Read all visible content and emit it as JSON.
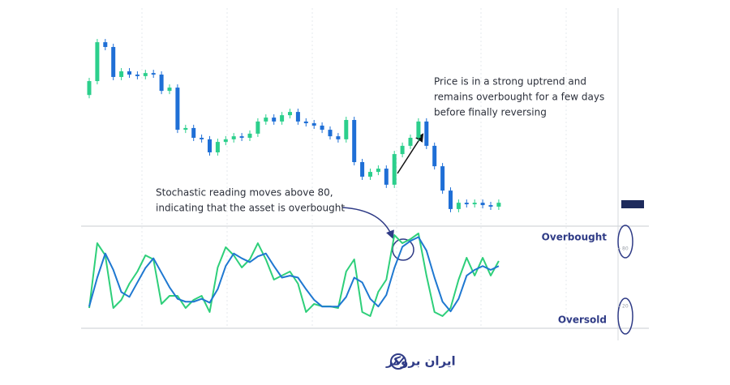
{
  "chart_data": [
    {
      "type": "candlestick",
      "open": [
        60.0,
        66.4,
        84.3,
        82.1,
        68.3,
        70.9,
        69.4,
        68.7,
        70.1,
        69.4,
        61.9,
        63.4,
        44.0,
        44.8,
        40.3,
        39.6,
        33.6,
        38.4,
        39.6,
        41.0,
        40.3,
        42.2,
        47.8,
        49.6,
        47.8,
        50.7,
        52.2,
        47.8,
        47.0,
        45.9,
        44.0,
        41.0,
        39.6,
        48.5,
        29.1,
        22.4,
        24.6,
        26.1,
        18.7,
        32.8,
        36.6,
        40.3,
        47.8,
        36.6,
        27.2,
        16.0,
        7.5,
        10.4,
        9.7,
        10.4,
        9.3,
        8.6
      ],
      "high": [
        67.9,
        85.8,
        85.8,
        83.6,
        72.4,
        72.4,
        70.9,
        71.6,
        71.6,
        70.9,
        64.9,
        64.9,
        46.3,
        46.3,
        41.8,
        41.1,
        39.9,
        41.1,
        42.5,
        42.5,
        43.7,
        49.3,
        51.1,
        51.1,
        52.2,
        53.7,
        53.7,
        49.3,
        48.5,
        47.4,
        45.5,
        42.5,
        50.0,
        50.0,
        30.6,
        26.1,
        27.6,
        27.6,
        34.3,
        38.1,
        41.8,
        49.3,
        49.3,
        38.1,
        28.7,
        17.5,
        11.9,
        11.9,
        11.9,
        11.9,
        10.8,
        11.9
      ],
      "low": [
        58.5,
        64.9,
        80.6,
        66.8,
        66.8,
        67.9,
        67.2,
        67.2,
        67.9,
        60.4,
        60.4,
        42.5,
        42.5,
        38.8,
        38.1,
        32.1,
        32.1,
        36.9,
        38.1,
        38.8,
        38.8,
        40.7,
        46.3,
        46.3,
        46.3,
        49.2,
        46.3,
        45.5,
        44.4,
        42.5,
        39.5,
        38.1,
        38.1,
        27.6,
        20.9,
        20.9,
        23.1,
        17.2,
        17.2,
        31.3,
        35.1,
        38.8,
        35.1,
        25.7,
        14.5,
        6.0,
        6.0,
        8.2,
        8.2,
        7.8,
        7.1,
        7.1
      ],
      "close": [
        66.4,
        84.3,
        82.1,
        68.3,
        70.9,
        69.4,
        68.7,
        70.1,
        69.4,
        61.9,
        63.4,
        44.0,
        44.8,
        40.3,
        39.6,
        33.6,
        38.4,
        39.6,
        41.0,
        40.3,
        42.2,
        47.8,
        49.6,
        47.8,
        50.7,
        52.2,
        47.8,
        47.0,
        45.9,
        44.0,
        41.0,
        39.6,
        48.5,
        29.1,
        22.4,
        24.6,
        26.1,
        18.7,
        32.8,
        36.6,
        40.3,
        47.8,
        36.6,
        27.2,
        16.0,
        7.5,
        10.4,
        9.7,
        10.4,
        9.3,
        8.6,
        10.4
      ],
      "ylim": [
        0,
        100
      ],
      "up_color": "#2ccf8c",
      "down_color": "#1f6fd6",
      "annotations": [
        [
          "Price is in a strong uptrend and",
          "remains overbought for a few days",
          "before finally reversing"
        ],
        [
          "Stochastic reading moves above 80,",
          "indicating that the asset is overbought"
        ]
      ]
    },
    {
      "type": "line",
      "ylim": [
        0,
        100
      ],
      "yticks": [
        20,
        80
      ],
      "zones": [
        "Overbought",
        "Oversold"
      ],
      "series": [
        {
          "color": "#2ecf7a",
          "values": [
            18.5,
            85.7,
            73.1,
            18.5,
            26.9,
            43.7,
            56.3,
            73.1,
            68.9,
            22.7,
            31.1,
            31.1,
            18.5,
            26.9,
            31.1,
            14.3,
            60.5,
            81.5,
            73.1,
            60.5,
            68.9,
            85.7,
            68.9,
            47.9,
            52.1,
            56.3,
            43.7,
            14.3,
            22.7,
            20.2,
            20.2,
            18.5,
            56.3,
            68.9,
            14.3,
            10.1,
            35.3,
            47.9,
            94.1,
            85.7,
            89.9,
            95.8,
            52.1,
            14.3,
            10.1,
            18.5,
            47.9,
            70.6,
            52.1,
            70.6,
            52.1,
            67.2
          ]
        },
        {
          "color": "#1f78d1",
          "values": [
            20,
            50,
            75,
            58,
            35,
            30,
            45,
            60,
            70,
            55,
            40,
            28,
            25,
            25,
            28,
            24,
            38,
            62,
            75,
            70,
            66,
            72,
            75,
            62,
            50,
            52,
            50,
            38,
            27,
            20,
            20,
            20,
            30,
            50,
            45,
            28,
            20,
            32,
            60,
            82,
            88,
            92,
            78,
            50,
            25,
            15,
            28,
            52,
            58,
            62,
            58,
            62
          ]
        }
      ]
    }
  ],
  "brand": "ایران بروکر"
}
